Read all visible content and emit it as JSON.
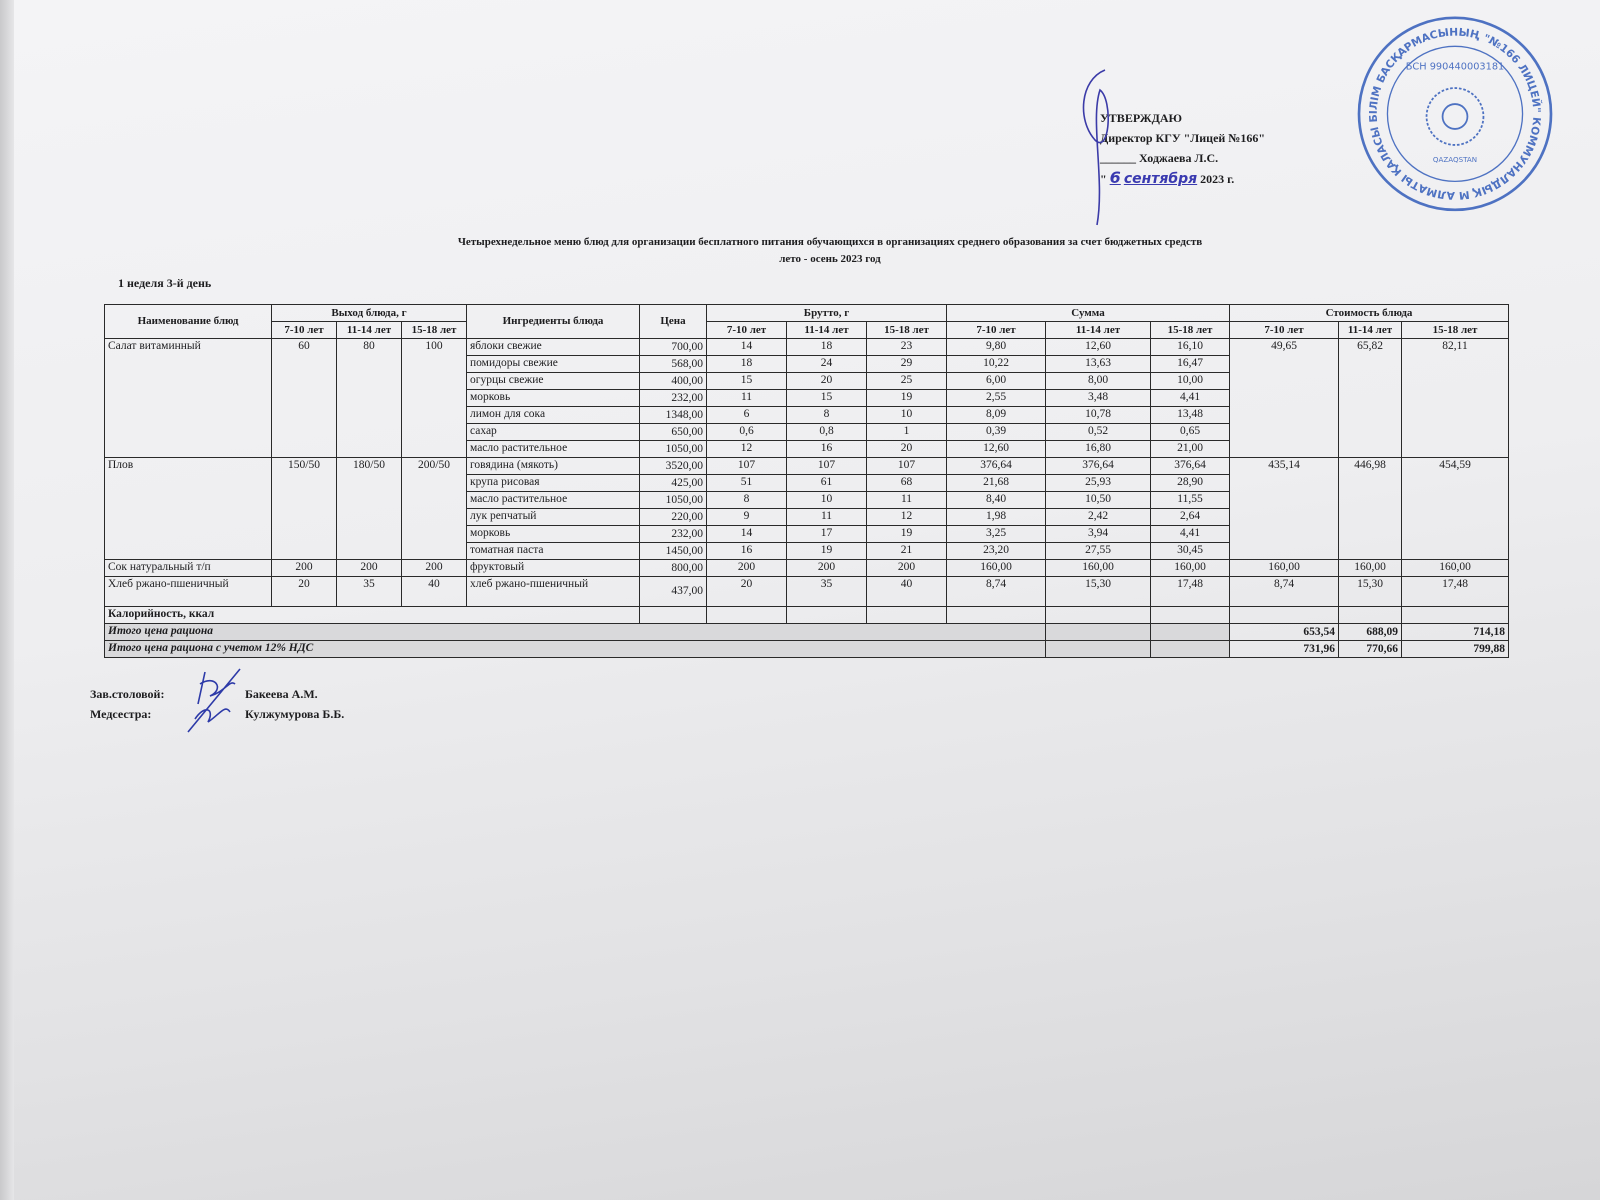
{
  "approve": {
    "line1": "УТВЕРЖДАЮ",
    "line2": "Директор КГУ \"Лицей №166\"",
    "line3": "______ Ходжаева Л.С.",
    "line4_prefix": "\"",
    "handwritten_day": "6",
    "handwritten_month": "сентября",
    "line4_suffix": "2023 г."
  },
  "stamp": {
    "ring_text": "АЛМАТЫ ҚАЛАСЫ БІЛІМ БАСҚАРМАСЫНЫҢ \"№166 ЛИЦЕЙ\" КОММУНАЛДЫҚ МЕМЛЕКЕТТІК МЕКЕМЕСІ *",
    "bin": "БСН 990440003181",
    "country": "QAZAQSTAN",
    "color": "#2b57b8"
  },
  "title": {
    "line1": "Четырехнедельное меню блюд для организации бесплатного питания обучающихся в организациях среднего образования за счет бюджетных средств",
    "line2": "лето - осень 2023 год"
  },
  "week_day": "1 неделя 3-й день",
  "table": {
    "headers": {
      "dish": "Наименование блюд",
      "output": "Выход блюда, г",
      "ingredients": "Ингредиенты блюда",
      "price": "Цена",
      "brutto": "Брутто, г",
      "sum": "Сумма",
      "cost": "Стоимость блюда",
      "ages": [
        "7-10 лет",
        "11-14 лет",
        "15-18 лет"
      ]
    },
    "dishes": [
      {
        "name": "Салат витаминный",
        "output": [
          "60",
          "80",
          "100"
        ],
        "cost": [
          "49,65",
          "65,82",
          "82,11"
        ],
        "ingredients": [
          {
            "name": "яблоки свежие",
            "price": "700,00",
            "brutto": [
              "14",
              "18",
              "23"
            ],
            "sum": [
              "9,80",
              "12,60",
              "16,10"
            ]
          },
          {
            "name": "помидоры свежие",
            "price": "568,00",
            "brutto": [
              "18",
              "24",
              "29"
            ],
            "sum": [
              "10,22",
              "13,63",
              "16,47"
            ]
          },
          {
            "name": "огурцы свежие",
            "price": "400,00",
            "brutto": [
              "15",
              "20",
              "25"
            ],
            "sum": [
              "6,00",
              "8,00",
              "10,00"
            ]
          },
          {
            "name": "морковь",
            "price": "232,00",
            "brutto": [
              "11",
              "15",
              "19"
            ],
            "sum": [
              "2,55",
              "3,48",
              "4,41"
            ]
          },
          {
            "name": "лимон для сока",
            "price": "1348,00",
            "brutto": [
              "6",
              "8",
              "10"
            ],
            "sum": [
              "8,09",
              "10,78",
              "13,48"
            ]
          },
          {
            "name": "сахар",
            "price": "650,00",
            "brutto": [
              "0,6",
              "0,8",
              "1"
            ],
            "sum": [
              "0,39",
              "0,52",
              "0,65"
            ]
          },
          {
            "name": "масло растительное",
            "price": "1050,00",
            "brutto": [
              "12",
              "16",
              "20"
            ],
            "sum": [
              "12,60",
              "16,80",
              "21,00"
            ]
          }
        ]
      },
      {
        "name": "Плов",
        "output": [
          "150/50",
          "180/50",
          "200/50"
        ],
        "cost": [
          "435,14",
          "446,98",
          "454,59"
        ],
        "ingredients": [
          {
            "name": "говядина (мякоть)",
            "price": "3520,00",
            "brutto": [
              "107",
              "107",
              "107"
            ],
            "sum": [
              "376,64",
              "376,64",
              "376,64"
            ]
          },
          {
            "name": "крупа рисовая",
            "price": "425,00",
            "brutto": [
              "51",
              "61",
              "68"
            ],
            "sum": [
              "21,68",
              "25,93",
              "28,90"
            ]
          },
          {
            "name": "масло растительное",
            "price": "1050,00",
            "brutto": [
              "8",
              "10",
              "11"
            ],
            "sum": [
              "8,40",
              "10,50",
              "11,55"
            ]
          },
          {
            "name": "лук репчатый",
            "price": "220,00",
            "brutto": [
              "9",
              "11",
              "12"
            ],
            "sum": [
              "1,98",
              "2,42",
              "2,64"
            ]
          },
          {
            "name": "морковь",
            "price": "232,00",
            "brutto": [
              "14",
              "17",
              "19"
            ],
            "sum": [
              "3,25",
              "3,94",
              "4,41"
            ]
          },
          {
            "name": "томатная паста",
            "price": "1450,00",
            "brutto": [
              "16",
              "19",
              "21"
            ],
            "sum": [
              "23,20",
              "27,55",
              "30,45"
            ]
          }
        ]
      },
      {
        "name": "Сок натуральный т/п",
        "output": [
          "200",
          "200",
          "200"
        ],
        "cost": [
          "160,00",
          "160,00",
          "160,00"
        ],
        "ingredients": [
          {
            "name": "фруктовый",
            "price": "800,00",
            "brutto": [
              "200",
              "200",
              "200"
            ],
            "sum": [
              "160,00",
              "160,00",
              "160,00"
            ]
          }
        ]
      },
      {
        "name": "Хлеб ржано-пшеничный",
        "output": [
          "20",
          "35",
          "40"
        ],
        "cost": [
          "8,74",
          "15,30",
          "17,48"
        ],
        "ingredients": [
          {
            "name": "хлеб ржано-пшеничный",
            "price": "437,00",
            "brutto": [
              "20",
              "35",
              "40"
            ],
            "sum": [
              "8,74",
              "15,30",
              "17,48"
            ]
          }
        ]
      }
    ],
    "calories_label": "Калорийность, ккал",
    "total_label": "Итого цена рациона",
    "total": [
      "653,54",
      "688,09",
      "714,18"
    ],
    "total_vat_label": "Итого цена рациона с учетом 12% НДС",
    "total_vat": [
      "731,96",
      "770,66",
      "799,88"
    ]
  },
  "signatures": {
    "canteen_label": "Зав.столовой:",
    "canteen_name": "Бакеева А.М.",
    "nurse_label": "Медсестра:",
    "nurse_name": "Кулжумурова Б.Б."
  }
}
